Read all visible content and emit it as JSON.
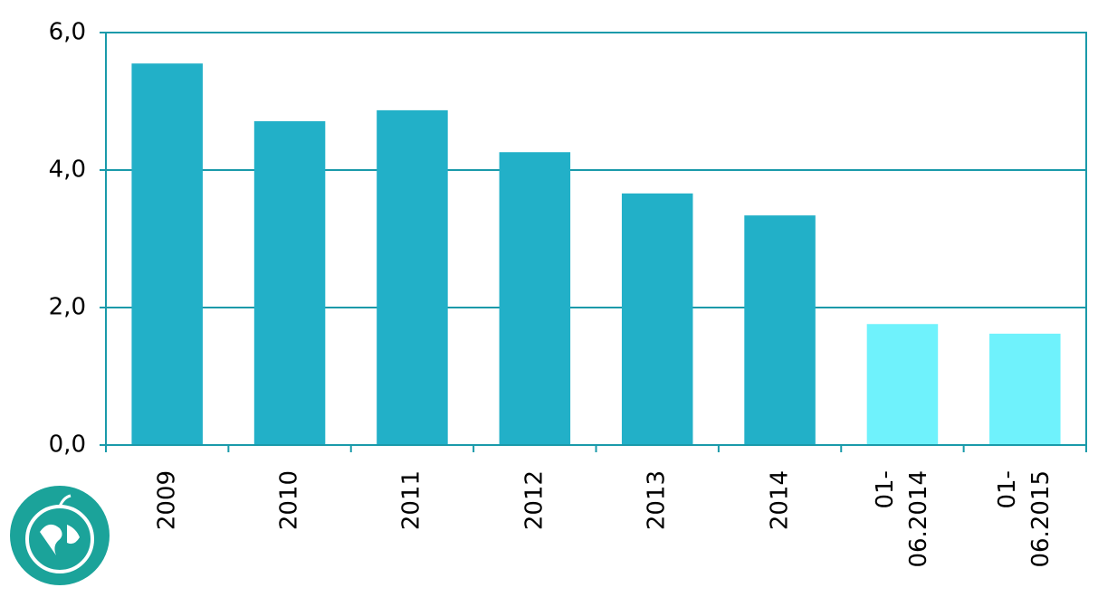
{
  "chart_data": {
    "type": "bar",
    "categories": [
      "2009",
      "2010",
      "2011",
      "2012",
      "2013",
      "2014",
      "01-\n06.2014",
      "01-\n06.2015"
    ],
    "values": [
      5.55,
      4.71,
      4.87,
      4.26,
      3.66,
      3.34,
      1.76,
      1.62
    ],
    "colors": [
      "#22b0c8",
      "#22b0c8",
      "#22b0c8",
      "#22b0c8",
      "#22b0c8",
      "#22b0c8",
      "#6ff2fc",
      "#6ff2fc"
    ],
    "ylim": [
      0,
      6
    ],
    "yticks": [
      {
        "value": 0,
        "label": "0,0"
      },
      {
        "value": 2,
        "label": "2,0"
      },
      {
        "value": 4,
        "label": "4,0"
      },
      {
        "value": 6,
        "label": "6,0"
      }
    ],
    "grid": true,
    "axis_color": "#1a9aaa"
  }
}
